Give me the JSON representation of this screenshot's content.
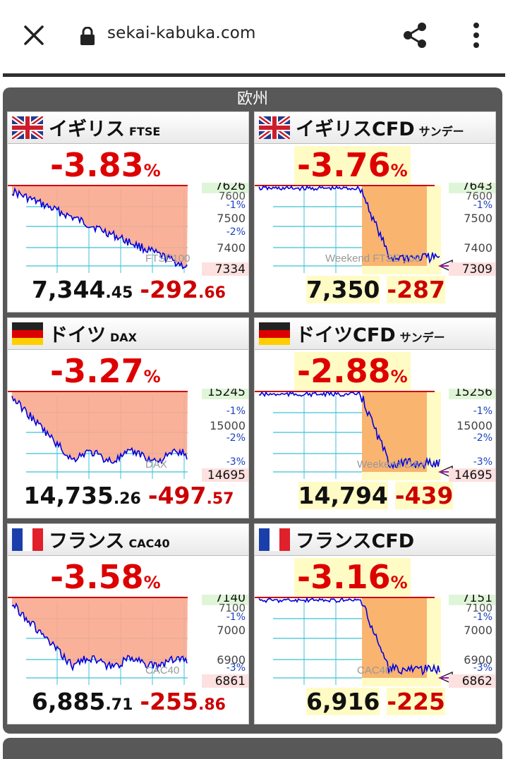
{
  "browser": {
    "url": "sekai-kabuka.com"
  },
  "region": {
    "title": "欧州"
  },
  "cards": [
    {
      "name": "イギリス",
      "sub": "FTSE",
      "flag": "uk",
      "pct": "-3.83",
      "pct_unit": "%",
      "price_int": "7,344",
      "price_dec": ".45",
      "chg_int": "-292",
      "chg_dec": ".66",
      "chart_label": "FTSE100",
      "levels": {
        "top": "7626",
        "bottom": "7334",
        "l1": "7500",
        "l2": "7400",
        "m1": "-1%",
        "m2": "-2%",
        "top_overlap": "7600"
      },
      "cfd": false
    },
    {
      "name": "イギリスCFD",
      "sub": "サンデー",
      "flag": "uk",
      "pct": "-3.76",
      "pct_unit": "%",
      "price_int": "7,350",
      "price_dec": "",
      "chg_int": "-287",
      "chg_dec": "",
      "chart_label": "Weekend FTSE 100",
      "levels": {
        "top": "7643",
        "bottom": "7309",
        "l1": "7500",
        "l2": "7400",
        "m1": "-1%",
        "top_overlap": "7600"
      },
      "cfd": true
    },
    {
      "name": "ドイツ",
      "sub": "DAX",
      "flag": "de",
      "pct": "-3.27",
      "pct_unit": "%",
      "price_int": "14,735",
      "price_dec": ".26",
      "chg_int": "-497",
      "chg_dec": ".57",
      "chart_label": "DAX",
      "levels": {
        "top": "15245",
        "bottom": "14695",
        "l1": "15000",
        "m1": "-1%",
        "m2": "-2%",
        "m3": "-3%"
      },
      "cfd": false
    },
    {
      "name": "ドイツCFD",
      "sub": "サンデー",
      "flag": "de",
      "pct": "-2.88",
      "pct_unit": "%",
      "price_int": "14,794",
      "price_dec": "",
      "chg_int": "-439",
      "chg_dec": "",
      "chart_label": "Weekend DAX",
      "levels": {
        "top": "15256",
        "bottom": "14695",
        "l1": "15000",
        "m1": "-1%",
        "m2": "-2%",
        "m3": "-3%"
      },
      "cfd": true
    },
    {
      "name": "フランス",
      "sub": "CAC40",
      "flag": "fr",
      "pct": "-3.58",
      "pct_unit": "%",
      "price_int": "6,885",
      "price_dec": ".71",
      "chg_int": "-255",
      "chg_dec": ".86",
      "chart_label": "CAC40",
      "levels": {
        "top": "7140",
        "bottom": "6861",
        "l1": "7000",
        "l2": "6900",
        "m1": "-1%",
        "m3": "-3%",
        "top_overlap": "7100"
      },
      "cfd": false
    },
    {
      "name": "フランスCFD",
      "sub": "",
      "flag": "fr",
      "pct": "-3.16",
      "pct_unit": "%",
      "price_int": "6,916",
      "price_dec": "",
      "chg_int": "-225",
      "chg_dec": "",
      "chart_label": "CAC40",
      "levels": {
        "top": "7151",
        "bottom": "6862",
        "l1": "7000",
        "l2": "6900",
        "m1": "-1%",
        "m3": "-3%",
        "top_overlap": "7100"
      },
      "cfd": true
    }
  ],
  "colors": {
    "down": "#d00000",
    "fill": "#f9a88f",
    "line": "#0000dd",
    "grid": "#3cc0d8",
    "cfd_bg": "#fffbc5",
    "top_tag": "#dff5d8",
    "bottom_tag": "#fde0e0"
  }
}
